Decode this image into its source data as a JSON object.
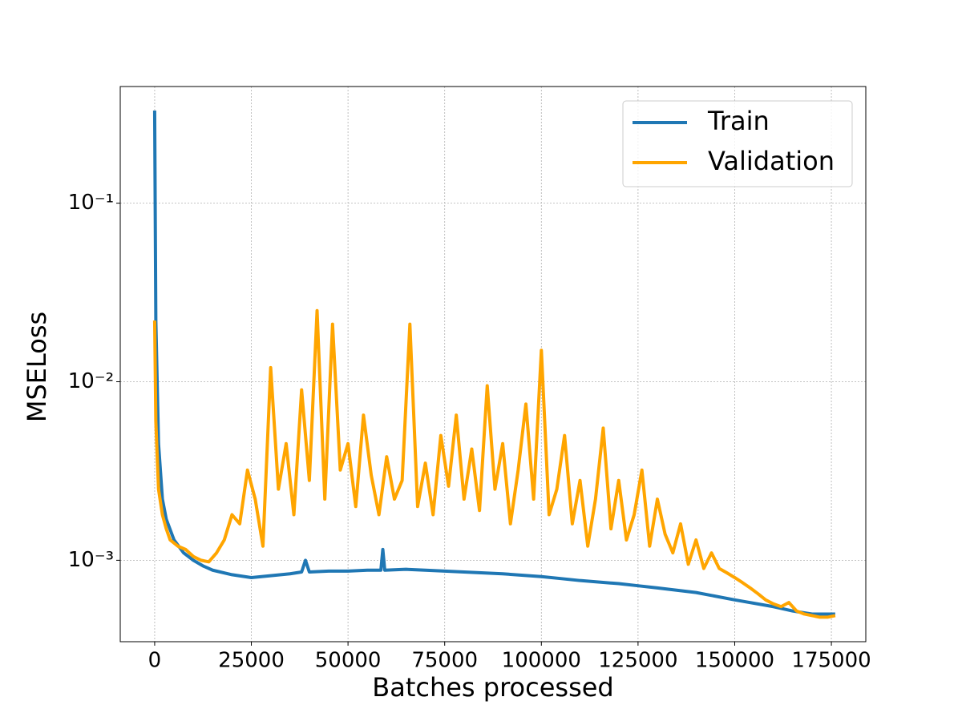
{
  "chart_data": {
    "type": "line",
    "x_label": "Batches processed",
    "y_label": "MSELoss",
    "ylog": true,
    "grid": true,
    "legend": "upper right",
    "xlim": [
      -8900,
      183900
    ],
    "ylim": [
      0.00035,
      0.45
    ],
    "xticks": [
      0,
      25000,
      50000,
      75000,
      100000,
      125000,
      150000,
      175000
    ],
    "yticks": [
      {
        "value": 0.001,
        "label": "10⁻³"
      },
      {
        "value": 0.01,
        "label": "10⁻²"
      },
      {
        "value": 0.1,
        "label": "10⁻¹"
      }
    ],
    "series": [
      {
        "name": "Train",
        "color": "#1f77b4",
        "x": [
          0,
          300,
          1000,
          2000,
          3000,
          5000,
          7500,
          10000,
          12500,
          15000,
          20000,
          25000,
          30000,
          35000,
          38000,
          39000,
          40000,
          45000,
          50000,
          55000,
          58500,
          59000,
          59500,
          65000,
          70000,
          75000,
          80000,
          90000,
          100000,
          105000,
          110000,
          120000,
          125000,
          130000,
          140000,
          150000,
          160000,
          165000,
          170000,
          176000
        ],
        "values": [
          0.33,
          0.022,
          0.0045,
          0.0022,
          0.0017,
          0.0013,
          0.0011,
          0.001,
          0.00093,
          0.00088,
          0.00083,
          0.0008,
          0.00082,
          0.00084,
          0.00086,
          0.001,
          0.00086,
          0.00087,
          0.00087,
          0.00088,
          0.00088,
          0.00115,
          0.00088,
          0.00089,
          0.00088,
          0.00087,
          0.00086,
          0.00084,
          0.00081,
          0.00079,
          0.00077,
          0.00074,
          0.00072,
          0.0007,
          0.00066,
          0.0006,
          0.00055,
          0.00052,
          0.0005,
          0.0005
        ]
      },
      {
        "name": "Validation",
        "color": "#ffa500",
        "x": [
          0,
          300,
          1000,
          2000,
          3000,
          4000,
          6000,
          8000,
          10000,
          12000,
          14000,
          16000,
          18000,
          20000,
          22000,
          24000,
          26000,
          28000,
          30000,
          32000,
          34000,
          36000,
          38000,
          40000,
          42000,
          44000,
          46000,
          48000,
          50000,
          52000,
          54000,
          56000,
          58000,
          60000,
          62000,
          64000,
          66000,
          68000,
          70000,
          72000,
          74000,
          76000,
          78000,
          80000,
          82000,
          84000,
          86000,
          88000,
          90000,
          92000,
          94000,
          96000,
          98000,
          100000,
          102000,
          104000,
          106000,
          108000,
          110000,
          112000,
          114000,
          116000,
          118000,
          120000,
          122000,
          124000,
          126000,
          128000,
          130000,
          132000,
          134000,
          136000,
          138000,
          140000,
          142000,
          144000,
          146000,
          148000,
          150000,
          152000,
          154000,
          156000,
          158000,
          160000,
          162000,
          164000,
          166000,
          168000,
          170000,
          172000,
          174000,
          176000
        ],
        "values": [
          0.022,
          0.006,
          0.0025,
          0.0018,
          0.0015,
          0.0013,
          0.0012,
          0.00115,
          0.00105,
          0.001,
          0.00098,
          0.0011,
          0.0013,
          0.0018,
          0.0016,
          0.0032,
          0.0022,
          0.0012,
          0.012,
          0.0025,
          0.0045,
          0.0018,
          0.009,
          0.0028,
          0.025,
          0.0022,
          0.021,
          0.0032,
          0.0045,
          0.002,
          0.0065,
          0.003,
          0.0018,
          0.0038,
          0.0022,
          0.0028,
          0.021,
          0.002,
          0.0035,
          0.0018,
          0.005,
          0.0026,
          0.0065,
          0.0022,
          0.0042,
          0.0019,
          0.0095,
          0.0025,
          0.0045,
          0.0016,
          0.0032,
          0.0075,
          0.0022,
          0.015,
          0.0018,
          0.0025,
          0.005,
          0.0016,
          0.0028,
          0.0012,
          0.0022,
          0.0055,
          0.0015,
          0.0028,
          0.0013,
          0.0018,
          0.0032,
          0.0012,
          0.0022,
          0.0014,
          0.0011,
          0.0016,
          0.00095,
          0.0013,
          0.0009,
          0.0011,
          0.0009,
          0.00085,
          0.0008,
          0.00075,
          0.0007,
          0.00065,
          0.0006,
          0.00057,
          0.00055,
          0.00058,
          0.00052,
          0.0005,
          0.00049,
          0.00048,
          0.00048,
          0.00049
        ]
      }
    ]
  }
}
